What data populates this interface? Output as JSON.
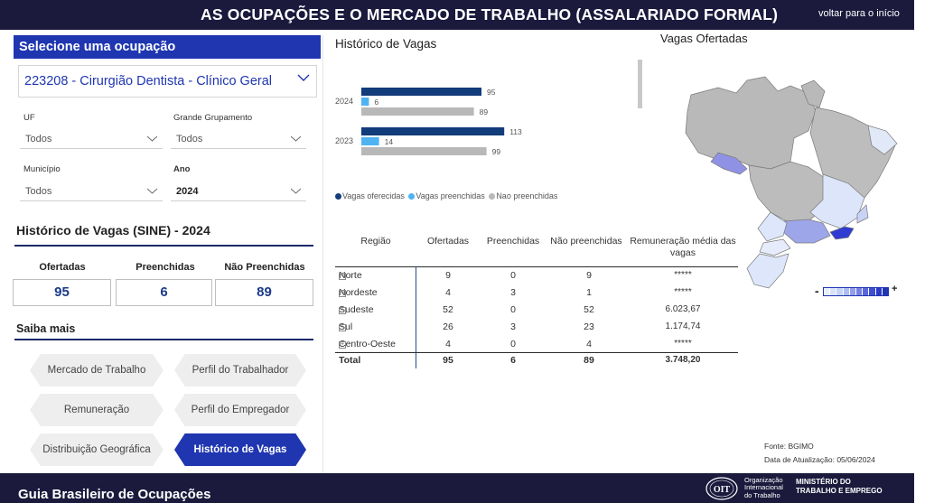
{
  "header": {
    "title": "AS OCUPAÇÕES E O MERCADO DE TRABALHO (ASSALARIADO FORMAL)",
    "back_link": "voltar para o início"
  },
  "footer": {
    "guide_title": "Guia Brasileiro de Ocupações",
    "oit_text": [
      "Organização",
      "Internacional",
      "do Trabalho"
    ],
    "ministry_text": [
      "MINISTÉRIO DO",
      "TRABALHO E EMPREGO"
    ]
  },
  "occupation": {
    "header": "Selecione uma ocupação",
    "selected": "223208 - Cirurgião Dentista - Clínico Geral"
  },
  "filters": {
    "uf": {
      "label": "UF",
      "value": "Todos"
    },
    "grupamento": {
      "label": "Grande Grupamento",
      "value": "Todos"
    },
    "municipio": {
      "label": "Município",
      "value": "Todos"
    },
    "ano": {
      "label": "Ano",
      "value": "2024"
    }
  },
  "summary": {
    "title": "Histórico de Vagas (SINE) - 2024",
    "ofertadas_label": "Ofertadas",
    "ofertadas": "95",
    "preenchidas_label": "Preenchidas",
    "preenchidas": "6",
    "nao_label": "Não Preenchidas",
    "nao": "89"
  },
  "saiba": {
    "title": "Saiba mais",
    "buttons": [
      "Mercado de Trabalho",
      "Perfil do Trabalhador",
      "Remuneração",
      "Perfil do Empregador",
      "Distribuição Geográfica",
      "Histórico de Vagas"
    ]
  },
  "history": {
    "title": "Histórico de Vagas",
    "legend": [
      "Vagas oferecidas",
      "Vagas preenchidas",
      "Nao preenchidas"
    ]
  },
  "chart_data": {
    "type": "bar",
    "orientation": "horizontal",
    "title": "Histórico de Vagas",
    "categories": [
      "2024",
      "2023"
    ],
    "series": [
      {
        "name": "Vagas oferecidas",
        "values": [
          95,
          113
        ],
        "color": "#123c7a"
      },
      {
        "name": "Vagas preenchidas",
        "values": [
          6,
          14
        ],
        "color": "#4fb3f2"
      },
      {
        "name": "Nao preenchidas",
        "values": [
          89,
          99
        ],
        "color": "#b8b8b8"
      }
    ],
    "legend_position": "bottom",
    "grid": false
  },
  "table": {
    "headers": [
      "Região",
      "Ofertadas",
      "Preenchidas",
      "Não preenchidas",
      "Remuneração média das vagas"
    ],
    "rows": [
      {
        "regiao": "Norte",
        "ofertadas": "9",
        "preenchidas": "0",
        "nao": "9",
        "rem": "*****"
      },
      {
        "regiao": "Nordeste",
        "ofertadas": "4",
        "preenchidas": "3",
        "nao": "1",
        "rem": "*****"
      },
      {
        "regiao": "Sudeste",
        "ofertadas": "52",
        "preenchidas": "0",
        "nao": "52",
        "rem": "6.023,67"
      },
      {
        "regiao": "Sul",
        "ofertadas": "26",
        "preenchidas": "3",
        "nao": "23",
        "rem": "1.174,74"
      },
      {
        "regiao": "Centro-Oeste",
        "ofertadas": "4",
        "preenchidas": "0",
        "nao": "4",
        "rem": "*****"
      }
    ],
    "total": {
      "label": "Total",
      "ofertadas": "95",
      "preenchidas": "6",
      "nao": "89",
      "rem": "3.748,20"
    }
  },
  "map": {
    "title": "Vagas Ofertadas",
    "scale_min": "-",
    "scale_max": "+"
  },
  "source": {
    "fonte": "Fonte: BGIMO",
    "data": "Data de Atualização: 05/06/2024"
  },
  "colors": {
    "navy": "#1b1a3d",
    "accent": "#1f36b0",
    "bar_dark": "#123c7a",
    "bar_light": "#4fb3f2",
    "bar_gray": "#b8b8b8"
  }
}
